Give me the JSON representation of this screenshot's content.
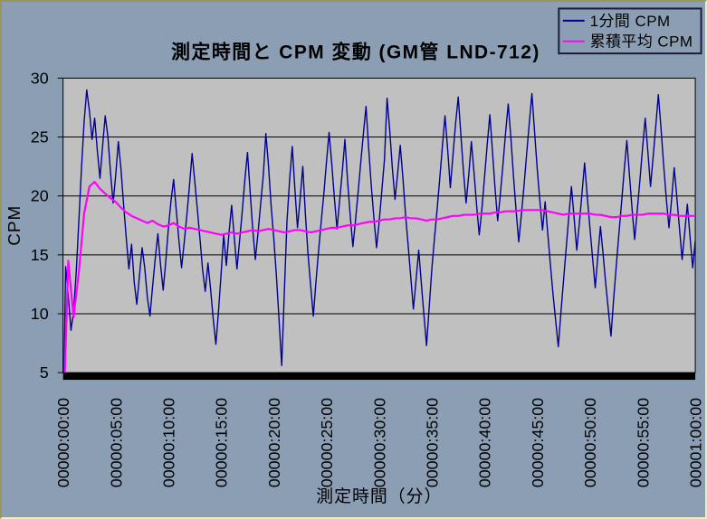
{
  "chart": {
    "title": "測定時間と CPM 変動 (GM管 LND-712)",
    "x_axis_title": "測定時間（分）",
    "y_axis_title": "CPM",
    "legend": [
      {
        "label": "1分間 CPM",
        "color": "#000090"
      },
      {
        "label": "累積平均 CPM",
        "color": "#FF00FF"
      }
    ],
    "colors": {
      "background": "#8C9EB4",
      "plot_background": "#C0C0C0",
      "gridline": "#000000",
      "axis_bar": "#000000",
      "legend_border": "#1A1A3A"
    }
  },
  "chart_data": {
    "type": "line",
    "title": "測定時間と CPM 変動 (GM管 LND-712)",
    "xlabel": "測定時間（分）",
    "ylabel": "CPM",
    "ylim": [
      5,
      30
    ],
    "y_ticks": [
      5,
      10,
      15,
      20,
      25,
      30
    ],
    "x_range_minutes": [
      0,
      60
    ],
    "x_tick_interval_minutes": 5,
    "x_tick_labels": [
      "00000:00:00",
      "00000:05:00",
      "00000:10:00",
      "00000:15:00",
      "00000:20:00",
      "00000:25:00",
      "00000:30:00",
      "00000:35:00",
      "00000:40:00",
      "00000:45:00",
      "00000:50:00",
      "00000:55:00",
      "00001:00:00"
    ],
    "grid": "horizontal",
    "legend_position": "top-right",
    "series": [
      {
        "name": "1分間 CPM",
        "color": "#000090",
        "stroke_width": 1.4,
        "x_step_minutes": 0.25,
        "values": [
          0,
          14,
          11.5,
          8.6,
          10.2,
          13.5,
          17.8,
          22.4,
          26.3,
          29,
          27.2,
          24.8,
          26.6,
          23.9,
          21.5,
          24.2,
          26.8,
          25.1,
          22,
          19.4,
          21.8,
          24.6,
          22.3,
          19.2,
          16.4,
          13.8,
          15.9,
          12.7,
          10.8,
          13.2,
          15.6,
          13.9,
          11.4,
          9.8,
          12.3,
          14.7,
          16.8,
          14.2,
          12,
          14.5,
          17.3,
          19.6,
          21.4,
          18.7,
          16.2,
          13.9,
          16.1,
          18.4,
          20.9,
          23.6,
          21.2,
          18.8,
          16.3,
          13.7,
          11.9,
          14.3,
          12.1,
          9.6,
          7.4,
          10.2,
          13.4,
          16.7,
          14.1,
          16.9,
          19.2,
          16.5,
          13.8,
          16.2,
          18.6,
          21.3,
          23.7,
          20.4,
          17.2,
          14.6,
          16.8,
          19.3,
          21.7,
          25.3,
          22.6,
          19.1,
          16.4,
          13.2,
          9.4,
          5.6,
          11.8,
          17.8,
          21.4,
          24.2,
          20.6,
          17.3,
          19.8,
          22.5,
          18.4,
          15.1,
          12.4,
          9.8,
          12.7,
          15.3,
          17.8,
          20.2,
          22.9,
          25.4,
          22.7,
          19.8,
          17.2,
          19.6,
          22.1,
          24.8,
          21.3,
          18.4,
          15.7,
          17.9,
          20.3,
          22.8,
          25.2,
          27.6,
          24.1,
          20.9,
          18.2,
          15.6,
          17.8,
          20.4,
          23.1,
          28.3,
          25.6,
          22.4,
          19.7,
          21.9,
          24.3,
          21.6,
          18.4,
          15.8,
          13.1,
          10.4,
          12.8,
          15.4,
          12.6,
          9.9,
          7.3,
          10.6,
          13.8,
          16.4,
          18.9,
          21.5,
          24.2,
          26.8,
          23.9,
          20.7,
          23.4,
          26.1,
          28.4,
          25.2,
          22.1,
          19.4,
          21.8,
          24.6,
          22,
          19.2,
          16.7,
          18.9,
          21.6,
          24.3,
          26.9,
          23.8,
          20.6,
          17.9,
          20.1,
          22.7,
          25.4,
          27.8,
          24.9,
          21.6,
          18.7,
          16.1,
          18.5,
          20.9,
          23.6,
          26.2,
          28.7,
          25.4,
          22.3,
          19.6,
          17.1,
          19.5,
          16.8,
          14.2,
          11.7,
          9.4,
          7.2,
          10.1,
          12.9,
          15.6,
          18.3,
          20.8,
          18.1,
          15.4,
          17.7,
          20.2,
          22.8,
          19.9,
          17.3,
          14.8,
          12.2,
          14.9,
          17.4,
          15.1,
          12.6,
          10.3,
          8.1,
          11.2,
          14.1,
          16.8,
          19.4,
          22.1,
          24.7,
          21.8,
          18.9,
          16.3,
          18.8,
          21.4,
          24.1,
          26.6,
          23.7,
          20.8,
          23.3,
          25.9,
          28.6,
          25.7,
          22.6,
          19.8,
          17.3,
          19.7,
          22.4,
          19.9,
          17.2,
          14.6,
          16.9,
          19.3,
          16.6,
          13.9,
          16.2
        ]
      },
      {
        "name": "累積平均 CPM",
        "color": "#FF00FF",
        "stroke_width": 2.2,
        "x_step_minutes": 0.5,
        "values": [
          0,
          14.5,
          9.7,
          13.5,
          18.5,
          20.8,
          21.2,
          20.6,
          20.2,
          19.8,
          19.5,
          19,
          18.6,
          18.3,
          18.1,
          17.9,
          17.7,
          17.9,
          17.6,
          17.4,
          17.5,
          17.7,
          17.4,
          17.2,
          17.3,
          17.2,
          17.1,
          17,
          16.9,
          16.8,
          16.7,
          16.8,
          16.9,
          16.8,
          16.9,
          17,
          17.1,
          17,
          17.1,
          17.2,
          17.1,
          17,
          16.9,
          17,
          17.1,
          17.1,
          17,
          16.9,
          17,
          17.1,
          17.2,
          17.3,
          17.3,
          17.4,
          17.5,
          17.5,
          17.6,
          17.7,
          17.8,
          17.8,
          17.9,
          18,
          18,
          18.1,
          18.1,
          18.2,
          18.1,
          18.1,
          18,
          17.9,
          18,
          18,
          18.1,
          18.2,
          18.3,
          18.3,
          18.4,
          18.4,
          18.4,
          18.5,
          18.5,
          18.5,
          18.6,
          18.6,
          18.7,
          18.7,
          18.7,
          18.8,
          18.8,
          18.8,
          18.8,
          18.8,
          18.7,
          18.6,
          18.5,
          18.4,
          18.5,
          18.5,
          18.5,
          18.5,
          18.5,
          18.4,
          18.4,
          18.3,
          18.2,
          18.2,
          18.3,
          18.3,
          18.4,
          18.4,
          18.4,
          18.5,
          18.5,
          18.5,
          18.5,
          18.4,
          18.4,
          18.3,
          18.3,
          18.3,
          18.3
        ]
      }
    ]
  }
}
